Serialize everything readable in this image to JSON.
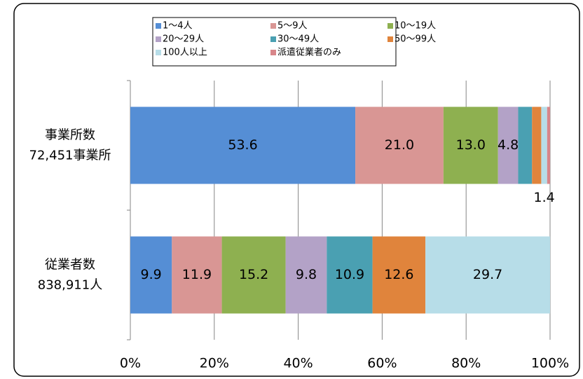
{
  "chart_data": {
    "type": "stacked-bar-horizontal",
    "categories": [
      [
        "事業所数",
        "72,451事業所"
      ],
      [
        "従業者数",
        "838,911人"
      ]
    ],
    "series": [
      {
        "name": "1〜4人",
        "color": "#558ed5",
        "values": [
          53.6,
          9.9
        ],
        "value_labels": [
          "53.6",
          "9.9"
        ]
      },
      {
        "name": "5〜9人",
        "color": "#d99694",
        "values": [
          21.0,
          11.9
        ],
        "value_labels": [
          "21.0",
          "11.9"
        ]
      },
      {
        "name": "10〜19人",
        "color": "#8eb050",
        "values": [
          13.0,
          15.2
        ],
        "value_labels": [
          "13.0",
          "15.2"
        ]
      },
      {
        "name": "20〜29人",
        "color": "#b3a2c7",
        "values": [
          4.8,
          9.8
        ],
        "value_labels": [
          "4.8",
          "9.8"
        ]
      },
      {
        "name": "30〜49人",
        "color": "#4aa0b2",
        "values": [
          3.3,
          10.9
        ],
        "value_labels": [
          null,
          "10.9"
        ]
      },
      {
        "name": "50〜99人",
        "color": "#e0843c",
        "values": [
          2.2,
          12.6
        ],
        "value_labels": [
          null,
          "12.6"
        ]
      },
      {
        "name": "100人以上",
        "color": "#b7dde8",
        "values": [
          1.4,
          29.7
        ],
        "value_labels": [
          "1.4",
          "29.7"
        ]
      },
      {
        "name": "派遣従業者のみ",
        "color": "#d8868a",
        "values": [
          0.7,
          null
        ],
        "value_labels": [
          null,
          null
        ]
      }
    ],
    "xlim": [
      0,
      100
    ],
    "xticks": [
      {
        "value": 0,
        "label": "0%"
      },
      {
        "value": 20,
        "label": "20%"
      },
      {
        "value": 40,
        "label": "40%"
      },
      {
        "value": 60,
        "label": "60%"
      },
      {
        "value": 80,
        "label": "80%"
      },
      {
        "value": 100,
        "label": "100%"
      }
    ],
    "grid": true
  }
}
